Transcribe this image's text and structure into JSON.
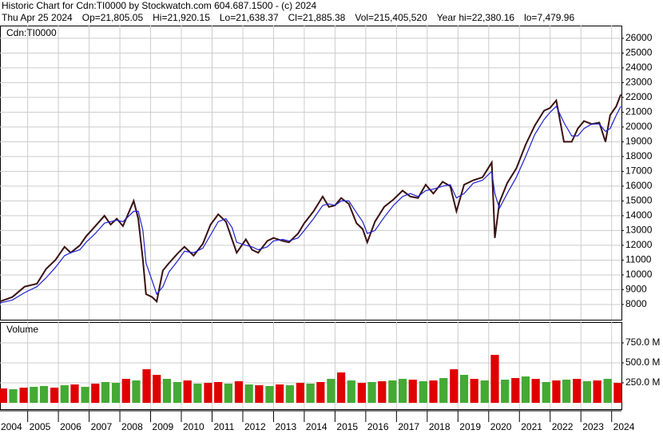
{
  "chart_data": [
    {
      "type": "line",
      "title": "Historic Chart for Cdn:TI0000 by Stockwatch.com 604.687.1500 - (c) 2024",
      "stats": [
        "Thu Apr 25 2024",
        "Op=21,805.05",
        "Hi=21,920.15",
        "Lo=21,638.37",
        "Cl=21,885.38",
        "Vol=215,405,520",
        "Year hi=22,380.16",
        "lo=7,479.96"
      ],
      "panel_label": "Cdn:TI0000",
      "x": [
        2004.1,
        2004.5,
        2004.9,
        2005.3,
        2005.6,
        2005.9,
        2006.2,
        2006.4,
        2006.7,
        2006.9,
        2007.2,
        2007.5,
        2007.7,
        2007.9,
        2008.1,
        2008.45,
        2008.6,
        2008.75,
        2008.85,
        2009.05,
        2009.2,
        2009.4,
        2009.6,
        2009.9,
        2010.1,
        2010.4,
        2010.7,
        2010.95,
        2011.2,
        2011.45,
        2011.65,
        2011.8,
        2012.1,
        2012.3,
        2012.5,
        2012.8,
        2013.0,
        2013.3,
        2013.5,
        2013.8,
        2014.0,
        2014.3,
        2014.6,
        2014.8,
        2015.0,
        2015.2,
        2015.45,
        2015.7,
        2015.9,
        2016.05,
        2016.3,
        2016.6,
        2016.9,
        2017.2,
        2017.45,
        2017.7,
        2017.95,
        2018.2,
        2018.5,
        2018.75,
        2018.95,
        2019.2,
        2019.5,
        2019.8,
        2020.1,
        2020.2,
        2020.35,
        2020.6,
        2020.9,
        2021.2,
        2021.5,
        2021.8,
        2022.0,
        2022.2,
        2022.45,
        2022.7,
        2022.9,
        2023.1,
        2023.35,
        2023.6,
        2023.8,
        2023.95,
        2024.15,
        2024.3
      ],
      "series": [
        {
          "color": "#3a1010",
          "values": [
            8200,
            8500,
            9200,
            9400,
            10400,
            11000,
            11900,
            11500,
            12000,
            12600,
            13300,
            14000,
            13400,
            13800,
            13300,
            15000,
            13800,
            11000,
            8700,
            8500,
            8200,
            10300,
            10800,
            11500,
            11900,
            11300,
            12100,
            13400,
            14100,
            13600,
            12400,
            11500,
            12400,
            11700,
            11500,
            12300,
            12500,
            12300,
            12200,
            12800,
            13500,
            14300,
            15300,
            14600,
            14700,
            15200,
            14800,
            13500,
            13100,
            12200,
            13600,
            14600,
            15100,
            15700,
            15300,
            15200,
            16100,
            15500,
            16300,
            16000,
            14300,
            16100,
            16400,
            16600,
            17600,
            12500,
            14900,
            16200,
            17200,
            18800,
            20100,
            21100,
            21300,
            21800,
            19000,
            19000,
            19900,
            20400,
            20200,
            20300,
            19000,
            20800,
            21400,
            22200
          ]
        },
        {
          "color": "#2020d0",
          "values": [
            8100,
            8300,
            8800,
            9200,
            9800,
            10500,
            11300,
            11500,
            11700,
            12200,
            12800,
            13500,
            13600,
            13700,
            13600,
            14300,
            14300,
            13000,
            10800,
            9600,
            8700,
            9200,
            10200,
            11000,
            11600,
            11500,
            11800,
            12700,
            13600,
            13800,
            13200,
            12200,
            12000,
            11900,
            11700,
            11900,
            12300,
            12400,
            12300,
            12500,
            13000,
            13800,
            14700,
            14800,
            14700,
            15000,
            15000,
            14200,
            13600,
            12800,
            13000,
            13900,
            14700,
            15300,
            15500,
            15300,
            15700,
            15800,
            16000,
            16100,
            15200,
            15500,
            16200,
            16400,
            17000,
            15500,
            14500,
            15500,
            16600,
            18000,
            19500,
            20500,
            21000,
            21400,
            20300,
            19400,
            19400,
            19900,
            20200,
            20200,
            19700,
            19900,
            20800,
            21400
          ]
        }
      ],
      "xlim": [
        2004.1,
        2024.32
      ],
      "xticks": [
        2004,
        2005,
        2006,
        2007,
        2008,
        2009,
        2010,
        2011,
        2012,
        2013,
        2014,
        2015,
        2016,
        2017,
        2018,
        2019,
        2020,
        2021,
        2022,
        2023,
        2024
      ],
      "ylim": [
        6970,
        26860
      ],
      "yticks": [
        8000,
        9000,
        10000,
        11000,
        12000,
        13000,
        14000,
        15000,
        16000,
        17000,
        18000,
        19000,
        20000,
        21000,
        22000,
        23000,
        24000,
        25000,
        26000
      ],
      "grid": true
    },
    {
      "type": "bar",
      "panel_label": "Volume",
      "x": [
        2004.2,
        2004.53,
        2004.87,
        2005.2,
        2005.53,
        2005.87,
        2006.2,
        2006.53,
        2006.87,
        2007.2,
        2007.53,
        2007.87,
        2008.2,
        2008.53,
        2008.87,
        2009.2,
        2009.53,
        2009.87,
        2010.2,
        2010.53,
        2010.87,
        2011.2,
        2011.53,
        2011.87,
        2012.2,
        2012.53,
        2012.87,
        2013.2,
        2013.53,
        2013.87,
        2014.2,
        2014.53,
        2014.87,
        2015.2,
        2015.53,
        2015.87,
        2016.2,
        2016.53,
        2016.87,
        2017.2,
        2017.53,
        2017.87,
        2018.2,
        2018.53,
        2018.87,
        2019.2,
        2019.53,
        2019.87,
        2020.2,
        2020.53,
        2020.87,
        2021.2,
        2021.53,
        2021.87,
        2022.2,
        2022.53,
        2022.87,
        2023.2,
        2023.53,
        2023.87,
        2024.2
      ],
      "values": [
        180,
        170,
        190,
        200,
        210,
        190,
        220,
        230,
        200,
        240,
        260,
        250,
        300,
        280,
        420,
        350,
        300,
        260,
        280,
        240,
        250,
        260,
        240,
        270,
        230,
        220,
        210,
        230,
        220,
        250,
        240,
        260,
        300,
        380,
        280,
        250,
        260,
        270,
        280,
        300,
        290,
        270,
        280,
        310,
        420,
        350,
        300,
        280,
        600,
        290,
        310,
        330,
        300,
        260,
        280,
        290,
        300,
        270,
        280,
        300,
        250
      ],
      "colors": [
        "#e00000",
        "#44aa33",
        "#e00000",
        "#44aa33",
        "#44aa33",
        "#e00000",
        "#44aa33",
        "#e00000",
        "#44aa33",
        "#e00000",
        "#44aa33",
        "#44aa33",
        "#e00000",
        "#44aa33",
        "#e00000",
        "#e00000",
        "#44aa33",
        "#44aa33",
        "#e00000",
        "#44aa33",
        "#e00000",
        "#e00000",
        "#44aa33",
        "#e00000",
        "#44aa33",
        "#e00000",
        "#44aa33",
        "#e00000",
        "#44aa33",
        "#e00000",
        "#44aa33",
        "#e00000",
        "#44aa33",
        "#e00000",
        "#44aa33",
        "#e00000",
        "#44aa33",
        "#e00000",
        "#44aa33",
        "#44aa33",
        "#e00000",
        "#44aa33",
        "#e00000",
        "#44aa33",
        "#e00000",
        "#44aa33",
        "#e00000",
        "#44aa33",
        "#e00000",
        "#44aa33",
        "#e00000",
        "#44aa33",
        "#e00000",
        "#44aa33",
        "#e00000",
        "#44aa33",
        "#e00000",
        "#44aa33",
        "#e00000",
        "#44aa33",
        "#e00000"
      ],
      "xlim": [
        2004.1,
        2024.32
      ],
      "ylim": [
        -80,
        1010
      ],
      "yticks": [
        {
          "value": 250,
          "label": "250.0 M"
        },
        {
          "value": 500,
          "label": "500.0 M"
        },
        {
          "value": 750,
          "label": "750.0 M"
        }
      ],
      "grid": true
    }
  ]
}
